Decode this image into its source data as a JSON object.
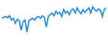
{
  "chart_data": {
    "type": "line",
    "x": [
      0,
      1,
      2,
      3,
      4,
      5,
      6,
      7,
      8,
      9,
      10,
      11,
      12,
      13,
      14,
      15,
      16,
      17,
      18,
      19,
      20,
      21,
      22,
      23,
      24,
      25,
      26,
      27,
      28,
      29,
      30,
      31,
      32,
      33,
      34,
      35,
      36,
      37,
      38,
      39,
      40,
      41,
      42,
      43,
      44,
      45,
      46,
      47,
      48,
      49,
      50,
      51,
      52,
      53,
      54
    ],
    "values": [
      55,
      58,
      60,
      57,
      62,
      50,
      55,
      40,
      52,
      48,
      20,
      45,
      50,
      15,
      48,
      52,
      55,
      50,
      58,
      60,
      55,
      62,
      58,
      30,
      60,
      65,
      70,
      62,
      75,
      68,
      72,
      60,
      80,
      70,
      75,
      65,
      78,
      82,
      70,
      85,
      75,
      68,
      80,
      72,
      78,
      85,
      70,
      88,
      80,
      75,
      82,
      78,
      60,
      80,
      85
    ],
    "color": "#2a8ad4",
    "xlim": [
      0,
      54
    ],
    "ylim": [
      0,
      100
    ],
    "tick_labels": false
  }
}
